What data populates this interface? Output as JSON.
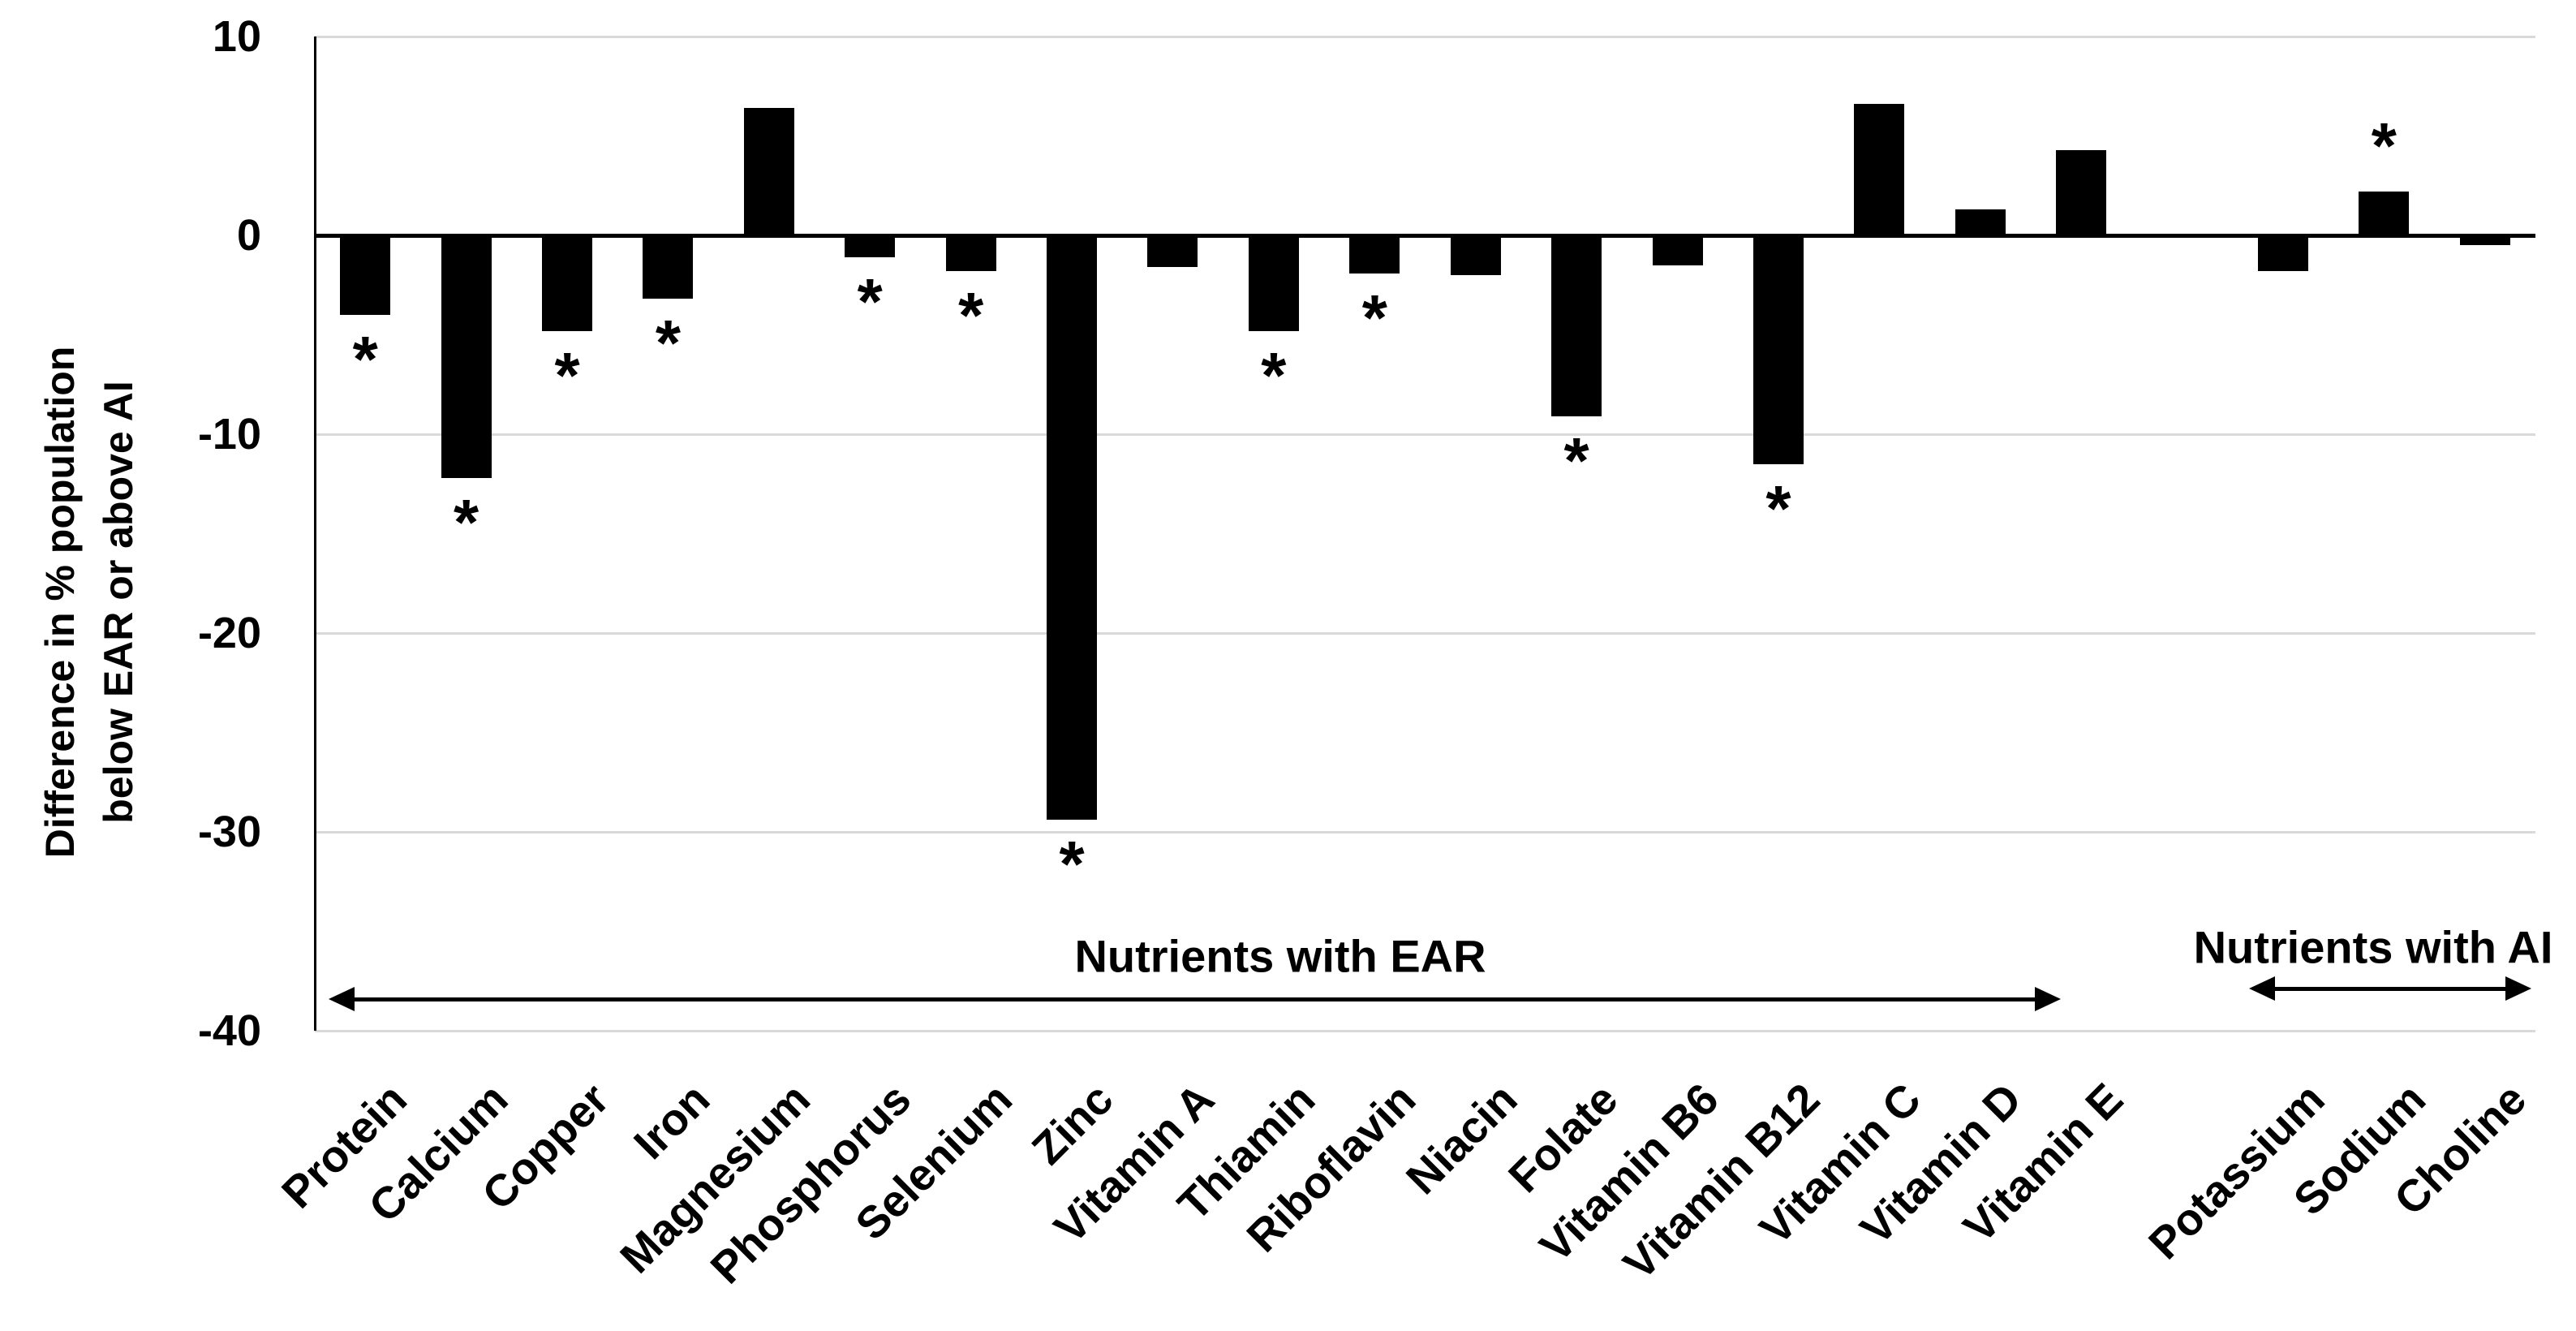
{
  "chart_data": {
    "type": "bar",
    "title": "",
    "ylabel": "Difference in % population below EAR or above AI",
    "ylabel_lines": [
      "Difference in % population",
      "below EAR or above AI"
    ],
    "xlabel": "",
    "ylim": [
      -40,
      10
    ],
    "yticks": [
      10,
      0,
      -10,
      -20,
      -30,
      -40
    ],
    "ytick_labels": [
      "10",
      "0",
      "-10",
      "-20",
      "-30",
      "-40"
    ],
    "grid": "horizontal",
    "legend": "none",
    "bar_color": "#000000",
    "gridline_color": "#d9d9d9",
    "axis_color": "#000000",
    "background_color": "#ffffff",
    "significance_marker": "*",
    "categories": [
      {
        "label": "Protein",
        "value": -4.0,
        "significant": true
      },
      {
        "label": "Calcium",
        "value": -12.2,
        "significant": true
      },
      {
        "label": "Copper",
        "value": -4.8,
        "significant": true
      },
      {
        "label": "Iron",
        "value": -3.2,
        "significant": true
      },
      {
        "label": "Magnesium",
        "value": 6.4,
        "significant": false
      },
      {
        "label": "Phosphorus",
        "value": -1.1,
        "significant": true
      },
      {
        "label": "Selenium",
        "value": -1.8,
        "significant": true
      },
      {
        "label": "Zinc",
        "value": -29.4,
        "significant": true
      },
      {
        "label": "Vitamin A",
        "value": -1.6,
        "significant": false
      },
      {
        "label": "Thiamin",
        "value": -4.8,
        "significant": true
      },
      {
        "label": "Riboflavin",
        "value": -1.9,
        "significant": true
      },
      {
        "label": "Niacin",
        "value": -2.0,
        "significant": false
      },
      {
        "label": "Folate",
        "value": -9.1,
        "significant": true
      },
      {
        "label": "Vitamin B6",
        "value": -1.5,
        "significant": false
      },
      {
        "label": "Vitamin B12",
        "value": -11.5,
        "significant": true
      },
      {
        "label": "Vitamin C",
        "value": 6.6,
        "significant": false
      },
      {
        "label": "Vitamin D",
        "value": 1.3,
        "significant": false
      },
      {
        "label": "Vitamin E",
        "value": 4.3,
        "significant": false
      },
      {
        "label": "Potassium",
        "value": -1.8,
        "significant": false
      },
      {
        "label": "Sodium",
        "value": 2.2,
        "significant": true
      },
      {
        "label": "Choline",
        "value": -0.5,
        "significant": false
      }
    ],
    "groups": [
      {
        "label": "Nutrients with EAR",
        "members": [
          "Protein",
          "Calcium",
          "Copper",
          "Iron",
          "Magnesium",
          "Phosphorus",
          "Selenium",
          "Zinc",
          "Vitamin A",
          "Thiamin",
          "Riboflavin",
          "Niacin",
          "Folate",
          "Vitamin B6",
          "Vitamin B12",
          "Vitamin C",
          "Vitamin D",
          "Vitamin E"
        ]
      },
      {
        "label": "Nutrients with AI",
        "members": [
          "Potassium",
          "Sodium",
          "Choline"
        ]
      }
    ]
  }
}
